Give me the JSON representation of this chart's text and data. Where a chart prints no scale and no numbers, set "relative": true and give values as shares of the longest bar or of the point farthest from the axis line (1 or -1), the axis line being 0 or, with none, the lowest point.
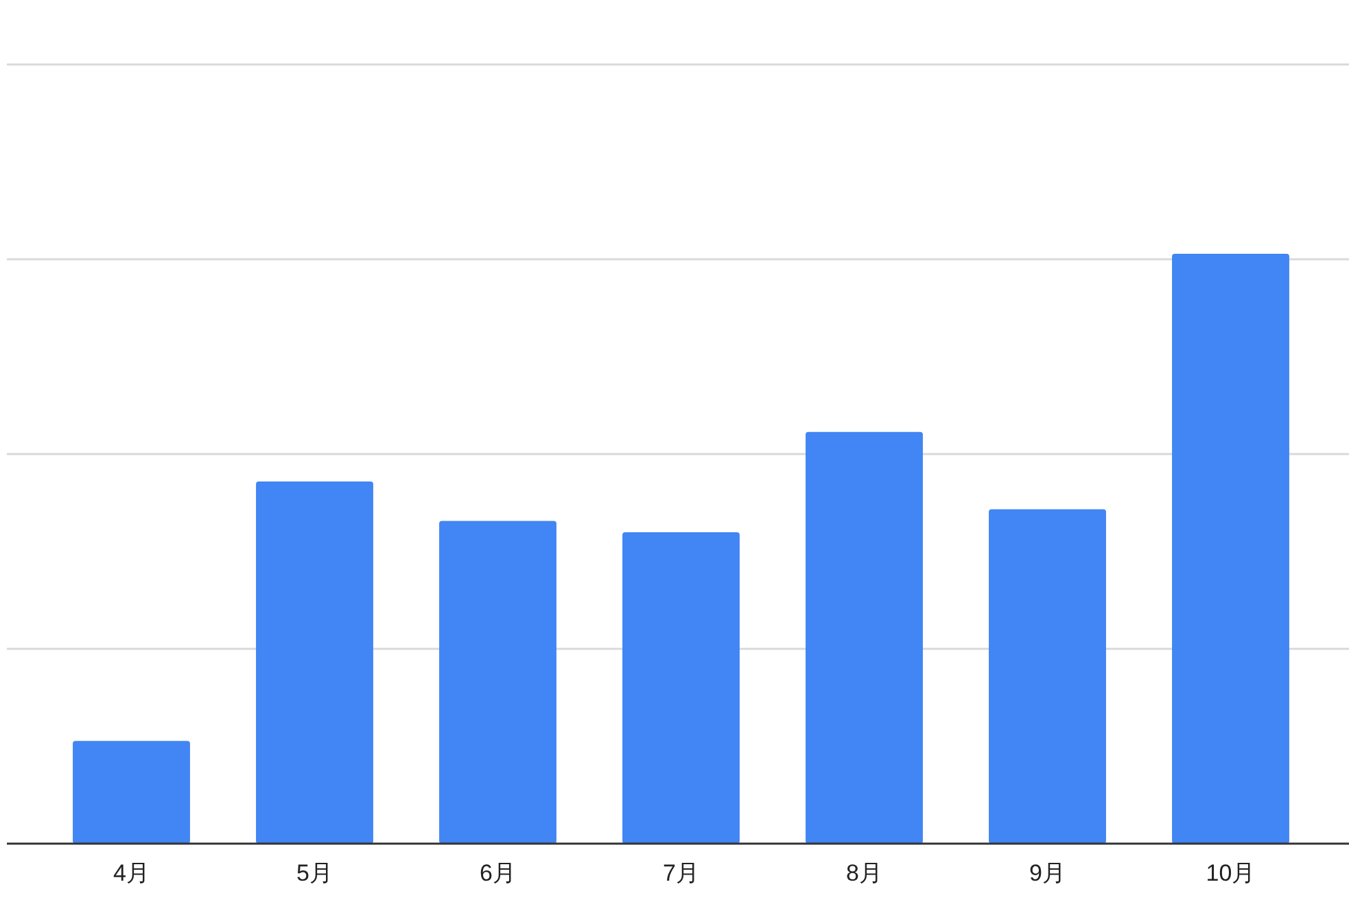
{
  "chart_data": {
    "type": "bar",
    "relative": true,
    "grid": "y",
    "categories": [
      "4月",
      "5月",
      "6月",
      "7月",
      "8月",
      "9月",
      "10月"
    ],
    "values": [
      0.174,
      0.614,
      0.547,
      0.528,
      0.698,
      0.567,
      1
    ],
    "color": "#4285f4"
  }
}
